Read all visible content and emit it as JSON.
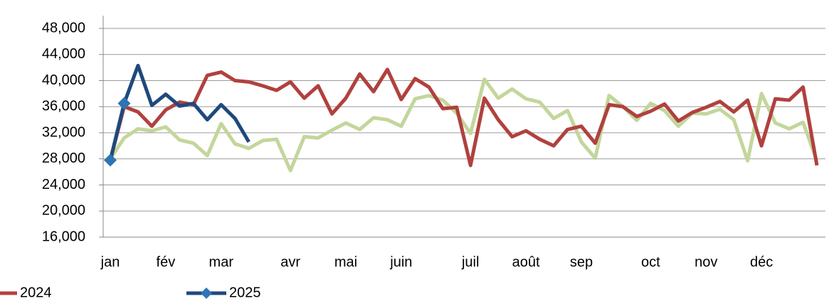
{
  "chart_data": {
    "type": "line",
    "categories": [
      "jan",
      null,
      null,
      null,
      "fév",
      null,
      null,
      null,
      "mar",
      null,
      null,
      null,
      null,
      "avr",
      null,
      null,
      null,
      "mai",
      null,
      null,
      null,
      "juin",
      null,
      null,
      null,
      null,
      "juil",
      null,
      null,
      null,
      "août",
      null,
      null,
      null,
      "sep",
      null,
      null,
      null,
      null,
      "oct",
      null,
      null,
      null,
      "nov",
      null,
      null,
      null,
      "déc",
      null,
      null,
      null,
      null
    ],
    "series": [
      {
        "color": "#c3d69b",
        "values": [
          28000,
          31200,
          32600,
          32300,
          32900,
          30900,
          30400,
          28500,
          33400,
          30300,
          29600,
          30800,
          31000,
          26200,
          31400,
          31200,
          32400,
          33500,
          32500,
          34300,
          34000,
          33000,
          37200,
          37700,
          37000,
          35000,
          31900,
          40200,
          37300,
          38700,
          37200,
          36700,
          34200,
          35400,
          30600,
          28100,
          37700,
          36000,
          33900,
          36500,
          35400,
          33000,
          35000,
          34900,
          35600,
          34000,
          27700,
          38000,
          33500,
          32600,
          33600,
          27700
        ]
      },
      {
        "name": "2024",
        "color": "#b0413e",
        "values": [
          27800,
          36000,
          35200,
          33000,
          35500,
          36700,
          36300,
          40800,
          41300,
          40000,
          39800,
          39200,
          38500,
          39800,
          37300,
          39200,
          34900,
          37300,
          41000,
          38300,
          41700,
          37100,
          40300,
          39000,
          35700,
          35900,
          27000,
          37300,
          34000,
          31400,
          32300,
          31000,
          30000,
          32500,
          33000,
          30400,
          36300,
          36000,
          34500,
          35300,
          36400,
          33800,
          35100,
          35900,
          36800,
          35200,
          37000,
          30000,
          37200,
          37000,
          39000,
          27000
        ]
      },
      {
        "name": "2025",
        "color": "#1f497d",
        "marker_color": "#2e75b6",
        "values": [
          27800,
          36500,
          42300,
          36200,
          37900,
          36100,
          36500,
          34000,
          36300,
          34200,
          30600,
          null,
          null,
          null,
          null,
          null,
          null,
          null,
          null,
          null,
          null,
          null,
          null,
          null,
          null,
          null,
          null,
          null,
          null,
          null,
          null,
          null,
          null,
          null,
          null,
          null,
          null,
          null,
          null,
          null,
          null,
          null,
          null,
          null,
          null,
          null,
          null,
          null,
          null,
          null,
          null,
          null
        ]
      }
    ],
    "ylim": [
      16000,
      48000
    ],
    "yticks": [
      {
        "value": 16000,
        "label": "16,000"
      },
      {
        "value": 20000,
        "label": "20,000"
      },
      {
        "value": 24000,
        "label": "24,000"
      },
      {
        "value": 28000,
        "label": "28,000"
      },
      {
        "value": 32000,
        "label": "32,000"
      },
      {
        "value": 36000,
        "label": "36,000"
      },
      {
        "value": 40000,
        "label": "40,000"
      },
      {
        "value": 44000,
        "label": "44,000"
      },
      {
        "value": 48000,
        "label": "48,000"
      }
    ],
    "grid": true
  }
}
